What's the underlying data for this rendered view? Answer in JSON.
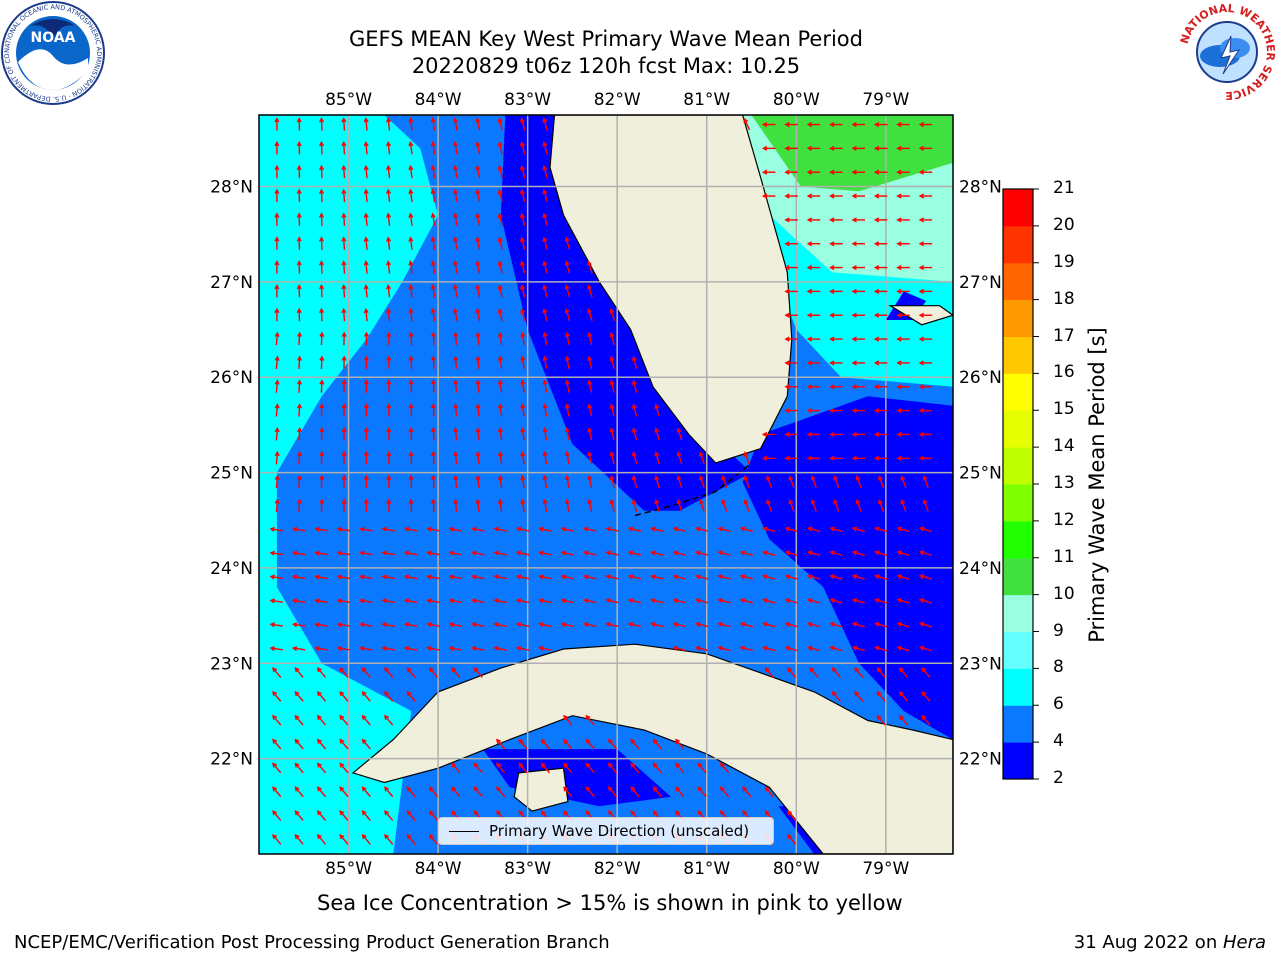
{
  "header": {
    "title_line1": "GEFS MEAN Key West Primary Wave Mean Period",
    "title_line2": "20220829 t06z 120h fcst   Max: 10.25"
  },
  "map": {
    "lon_labels": [
      "85°W",
      "84°W",
      "83°W",
      "82°W",
      "81°W",
      "80°W",
      "79°W"
    ],
    "lat_labels": [
      "22°N",
      "23°N",
      "24°N",
      "25°N",
      "26°N",
      "27°N",
      "28°N"
    ],
    "lon_extent": [
      -86.0,
      -78.25
    ],
    "lat_extent": [
      21.0,
      28.75
    ],
    "land_color": "#efefdc",
    "arrow_color": "#ff0000",
    "grid": true
  },
  "colorbar": {
    "label": "Primary Wave Mean Period [s]",
    "ticks": [
      "2",
      "4",
      "6",
      "8",
      "9",
      "10",
      "11",
      "12",
      "13",
      "14",
      "15",
      "16",
      "17",
      "18",
      "19",
      "20",
      "21"
    ],
    "levels": [
      {
        "range": "2-4",
        "color": "#0000ff"
      },
      {
        "range": "4-6",
        "color": "#0a78ff"
      },
      {
        "range": "6-8",
        "color": "#00ffff"
      },
      {
        "range": "8-9",
        "color": "#66ffff"
      },
      {
        "range": "9-10",
        "color": "#99ffe0"
      },
      {
        "range": "10-11",
        "color": "#40e040"
      },
      {
        "range": "11-12",
        "color": "#22ff00"
      },
      {
        "range": "12-13",
        "color": "#80ff00"
      },
      {
        "range": "13-14",
        "color": "#c0ff00"
      },
      {
        "range": "14-15",
        "color": "#e6ff00"
      },
      {
        "range": "15-16",
        "color": "#ffff00"
      },
      {
        "range": "16-17",
        "color": "#ffc800"
      },
      {
        "range": "17-18",
        "color": "#ff9900"
      },
      {
        "range": "18-19",
        "color": "#ff6600"
      },
      {
        "range": "19-20",
        "color": "#ff3300"
      },
      {
        "range": "20-21",
        "color": "#ff0000"
      }
    ]
  },
  "legend": {
    "label": "Primary Wave Direction (unscaled)"
  },
  "notes": {
    "ice": "Sea Ice Concentration > 15% is shown in pink to yellow"
  },
  "footer": {
    "left": "NCEP/EMC/Verification Post Processing Product Generation Branch",
    "right_prefix": "31 Aug 2022 on ",
    "right_host": "Hera"
  },
  "logos": {
    "noaa_text": "NOAA",
    "noaa_ring": "NATIONAL OCEANIC AND ATMOSPHERIC ADMINISTRATION · U.S. DEPARTMENT OF COMMERCE",
    "nws_ring": "NATIONAL WEATHER SERVICE"
  }
}
